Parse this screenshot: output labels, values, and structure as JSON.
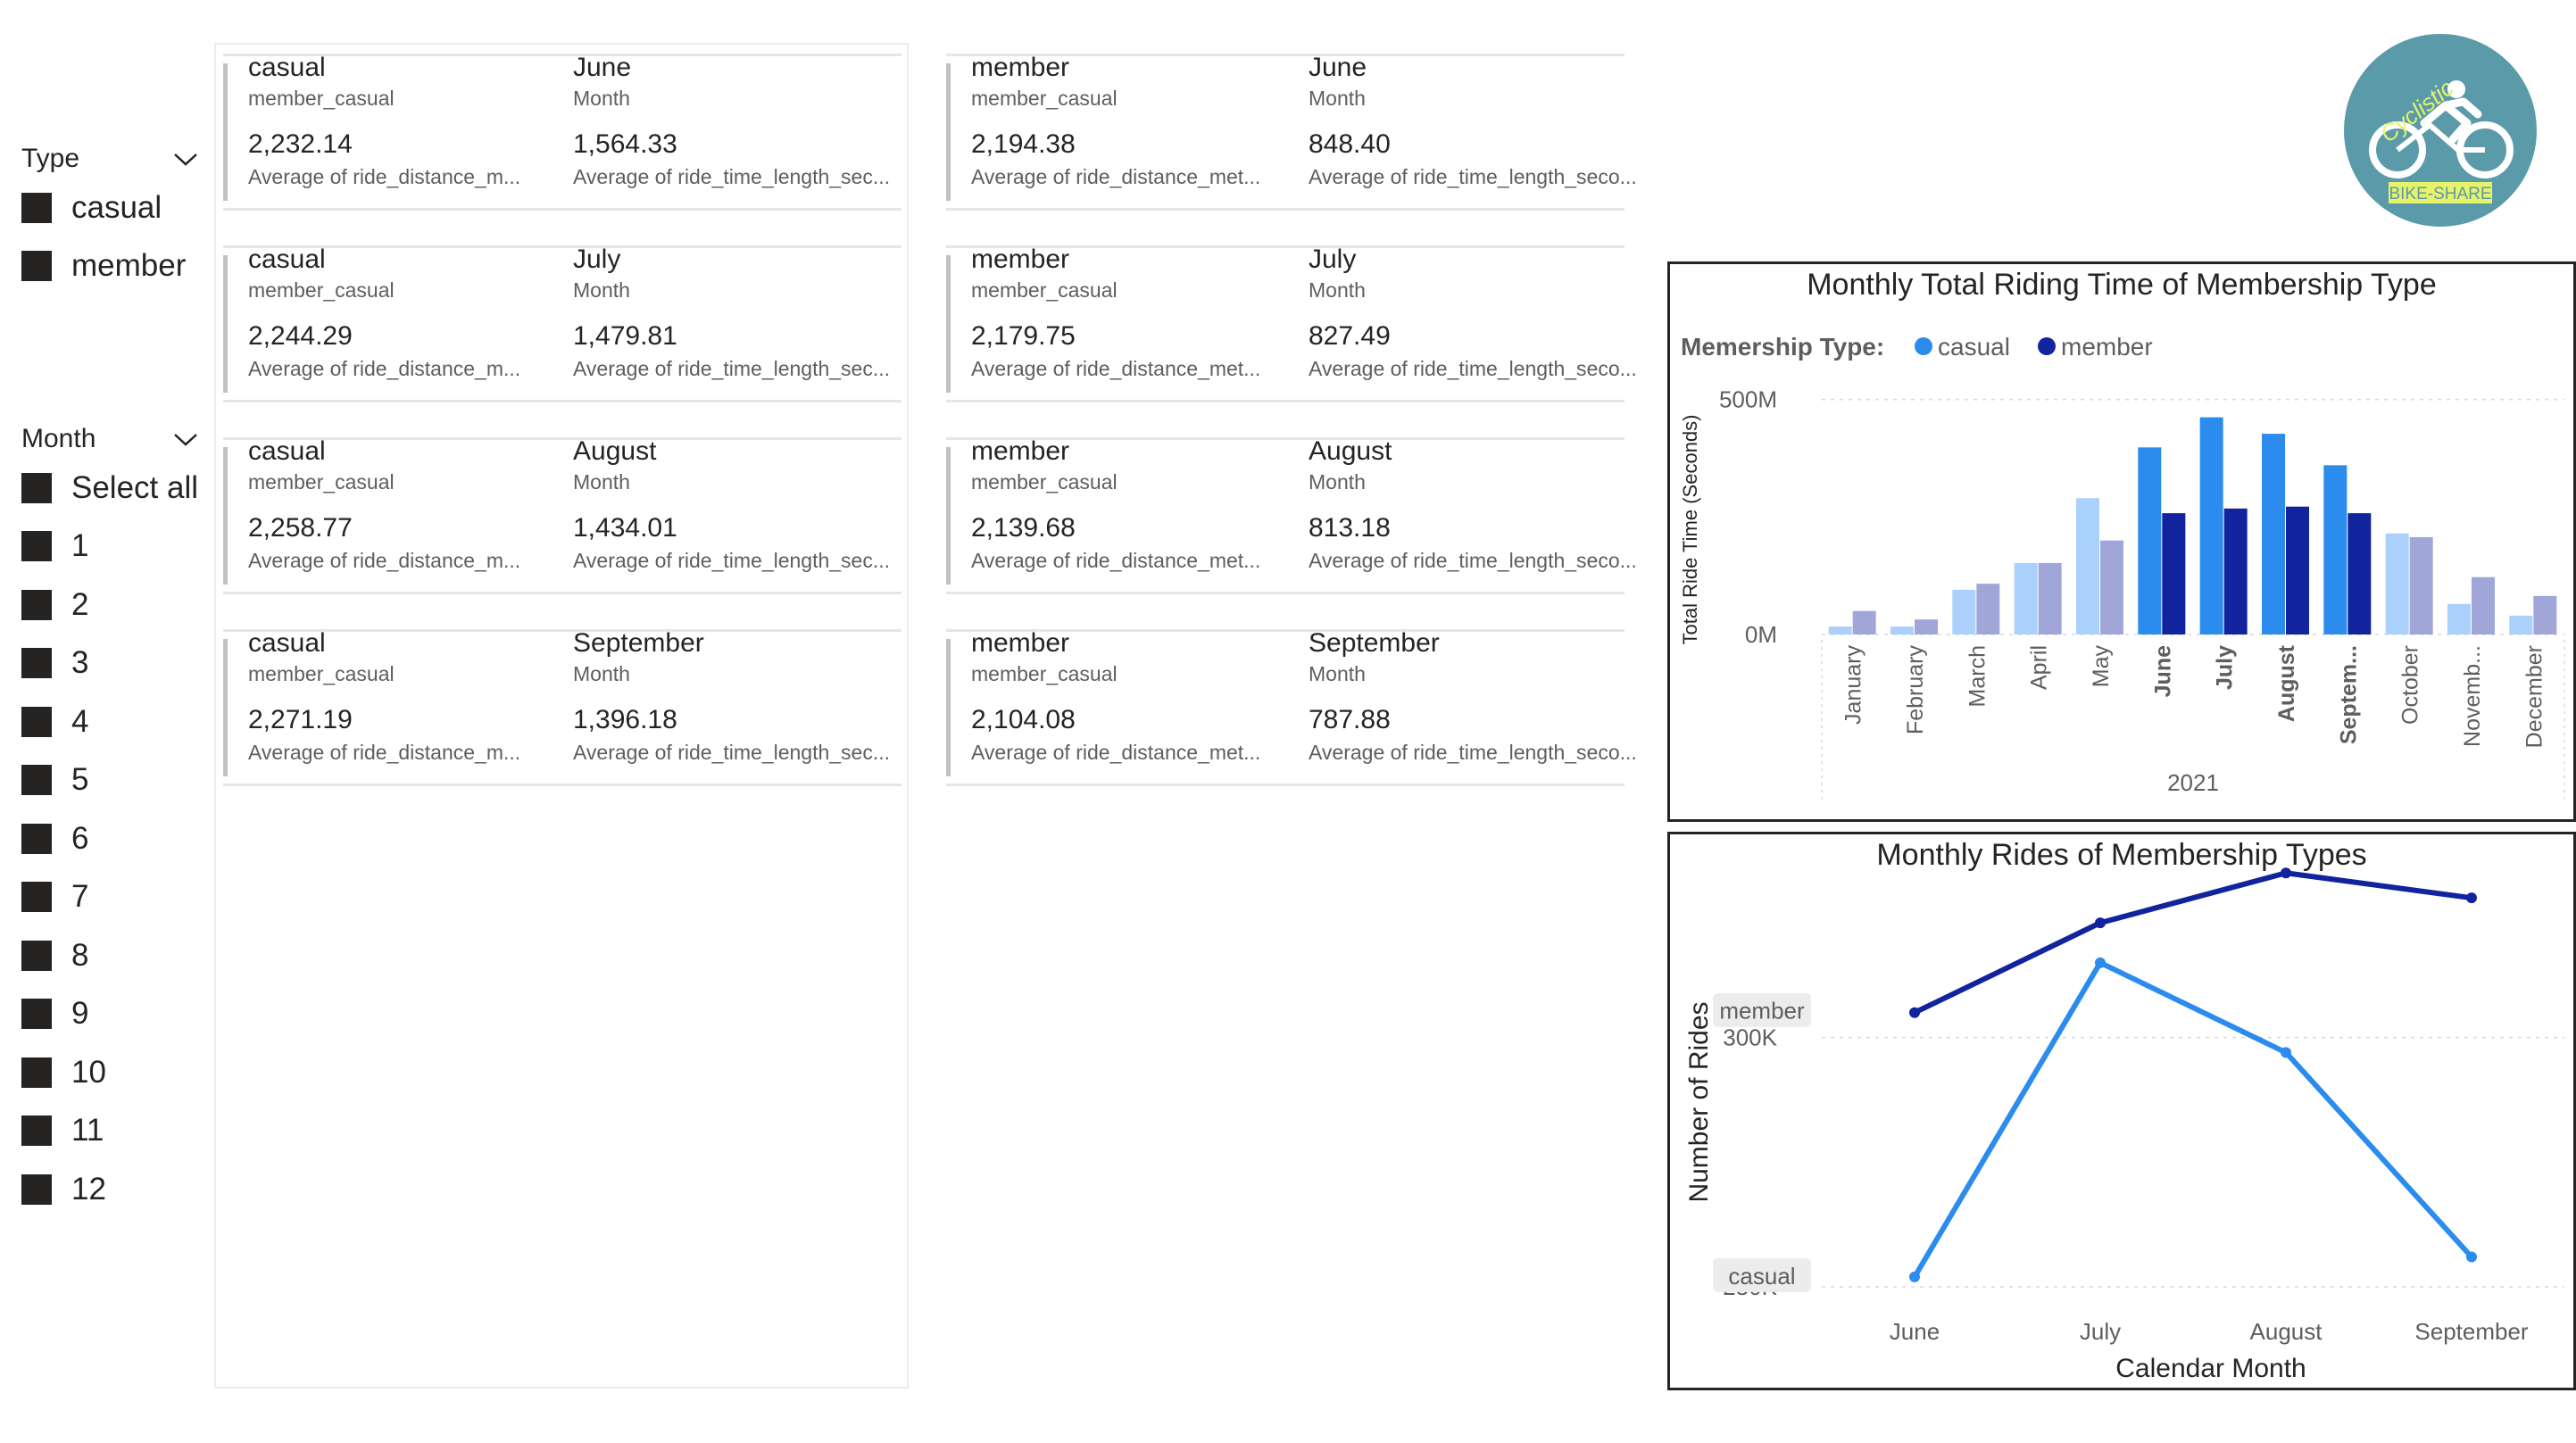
{
  "slicers": {
    "type": {
      "title": "Type",
      "items": [
        "casual",
        "member"
      ]
    },
    "month": {
      "title": "Month",
      "items": [
        "Select all",
        "1",
        "2",
        "3",
        "4",
        "5",
        "6",
        "7",
        "8",
        "9",
        "10",
        "11",
        "12"
      ]
    }
  },
  "cards": {
    "casual": [
      {
        "type": "casual",
        "type_label": "member_casual",
        "month": "June",
        "month_label": "Month",
        "distance": "2,232.14",
        "distance_label": "Average of ride_distance_m...",
        "time": "1,564.33",
        "time_label": "Average of ride_time_length_sec..."
      },
      {
        "type": "casual",
        "type_label": "member_casual",
        "month": "July",
        "month_label": "Month",
        "distance": "2,244.29",
        "distance_label": "Average of ride_distance_m...",
        "time": "1,479.81",
        "time_label": "Average of ride_time_length_sec..."
      },
      {
        "type": "casual",
        "type_label": "member_casual",
        "month": "August",
        "month_label": "Month",
        "distance": "2,258.77",
        "distance_label": "Average of ride_distance_m...",
        "time": "1,434.01",
        "time_label": "Average of ride_time_length_sec..."
      },
      {
        "type": "casual",
        "type_label": "member_casual",
        "month": "September",
        "month_label": "Month",
        "distance": "2,271.19",
        "distance_label": "Average of ride_distance_m...",
        "time": "1,396.18",
        "time_label": "Average of ride_time_length_sec..."
      }
    ],
    "member": [
      {
        "type": "member",
        "type_label": "member_casual",
        "month": "June",
        "month_label": "Month",
        "distance": "2,194.38",
        "distance_label": "Average of ride_distance_met...",
        "time": "848.40",
        "time_label": "Average of ride_time_length_seco..."
      },
      {
        "type": "member",
        "type_label": "member_casual",
        "month": "July",
        "month_label": "Month",
        "distance": "2,179.75",
        "distance_label": "Average of ride_distance_met...",
        "time": "827.49",
        "time_label": "Average of ride_time_length_seco..."
      },
      {
        "type": "member",
        "type_label": "member_casual",
        "month": "August",
        "month_label": "Month",
        "distance": "2,139.68",
        "distance_label": "Average of ride_distance_met...",
        "time": "813.18",
        "time_label": "Average of ride_time_length_seco..."
      },
      {
        "type": "member",
        "type_label": "member_casual",
        "month": "September",
        "month_label": "Month",
        "distance": "2,104.08",
        "distance_label": "Average of ride_distance_met...",
        "time": "787.88",
        "time_label": "Average of ride_time_length_seco..."
      }
    ]
  },
  "logo": {
    "top_text": "Cyclistic",
    "bottom_text": "BIKE-SHARE",
    "circle_color": "#5b9aa9",
    "tag_color": "#e7f26b"
  },
  "chart_data": [
    {
      "type": "bar",
      "title": "Monthly Total Riding Time of Membership Type",
      "legend_title": "Memership Type:",
      "legend_position": "top-left",
      "ylabel": "Total Ride Time (Seconds)",
      "xlabel": "2021",
      "categories": [
        "January",
        "February",
        "March",
        "April",
        "May",
        "June",
        "July",
        "August",
        "Septem...",
        "October",
        "Novemb...",
        "December"
      ],
      "highlighted_categories": [
        "June",
        "July",
        "August",
        "Septem..."
      ],
      "y_ticks": [
        {
          "value": 0,
          "label": "0M"
        },
        {
          "value": 500,
          "label": "500M"
        }
      ],
      "ylim": [
        0,
        560
      ],
      "grid": true,
      "series": [
        {
          "name": "casual",
          "color": "#2b8cee",
          "faded_color": "#aad0fb",
          "values": [
            17,
            17,
            95,
            152,
            290,
            398,
            462,
            427,
            360,
            215,
            65,
            40
          ]
        },
        {
          "name": "member",
          "color": "#12239e",
          "faded_color": "#a0a7d8",
          "values": [
            50,
            32,
            108,
            152,
            200,
            258,
            268,
            272,
            258,
            207,
            122,
            82
          ]
        }
      ]
    },
    {
      "type": "line",
      "title": "Monthly Rides of Membership Types",
      "ylabel": "Number of Rides",
      "xlabel": "Calendar Month",
      "categories": [
        "June",
        "July",
        "August",
        "September"
      ],
      "y_ticks": [
        {
          "value": 250,
          "label": "250K"
        },
        {
          "value": 300,
          "label": "300K"
        }
      ],
      "ylim": [
        245,
        330
      ],
      "grid": true,
      "series": [
        {
          "name": "member",
          "color": "#12239e",
          "values": [
            305,
            323,
            333,
            328
          ]
        },
        {
          "name": "casual",
          "color": "#2b8cee",
          "values": [
            252,
            315,
            297,
            256
          ]
        }
      ]
    }
  ]
}
